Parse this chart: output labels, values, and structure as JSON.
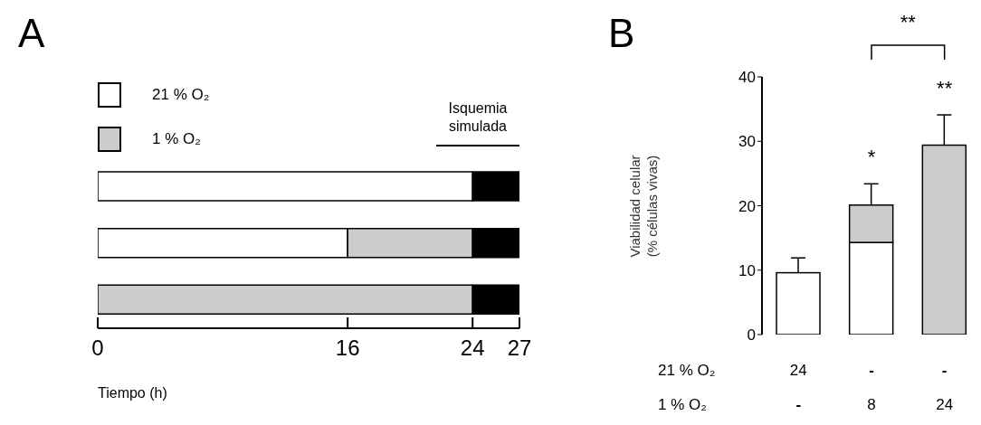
{
  "chart_data": [
    {
      "type": "bar",
      "title": "A",
      "orientation": "horizontal",
      "stacked": true,
      "categories": [
        null,
        null,
        null
      ],
      "series": [
        {
          "name": "21 % O₂",
          "color": "#ffffff",
          "values": [
            24,
            16,
            null
          ]
        },
        {
          "name": "1 % O₂",
          "color": "#cccccc",
          "values": [
            null,
            8,
            24
          ]
        },
        {
          "color": "#000000",
          "values": [
            3,
            3,
            3
          ]
        }
      ],
      "xlim": [
        0,
        27
      ],
      "xticks": [
        0,
        16,
        24,
        27
      ],
      "xlabel": "Tiempo (h)",
      "tick_labels": "x",
      "legend": "top left",
      "annotations": [
        "Isquemia simulada"
      ]
    },
    {
      "type": "bar",
      "title": "B",
      "stacked": true,
      "categories": [
        null,
        null,
        null
      ],
      "series": [
        {
          "color": "#ffffff",
          "values": [
            9.6,
            14.3,
            null
          ],
          "errors": [
            [
              9.6,
              11.9
            ],
            null,
            null
          ]
        },
        {
          "color": "#cccccc",
          "values": [
            null,
            5.8,
            29.4
          ],
          "errors": [
            null,
            [
              20.1,
              23.4
            ],
            [
              29.4,
              34.1
            ]
          ]
        }
      ],
      "ylim": [
        0,
        40
      ],
      "yticks": [
        0,
        10,
        20,
        30,
        40
      ],
      "ylabel": "Viabilidad celular\n(% células vivas)",
      "tick_labels": "y",
      "annotations": [
        "**",
        "*",
        "**",
        "21 % O₂",
        "24",
        "-",
        "-",
        "1 % O₂",
        "-",
        "8",
        "24"
      ]
    }
  ]
}
